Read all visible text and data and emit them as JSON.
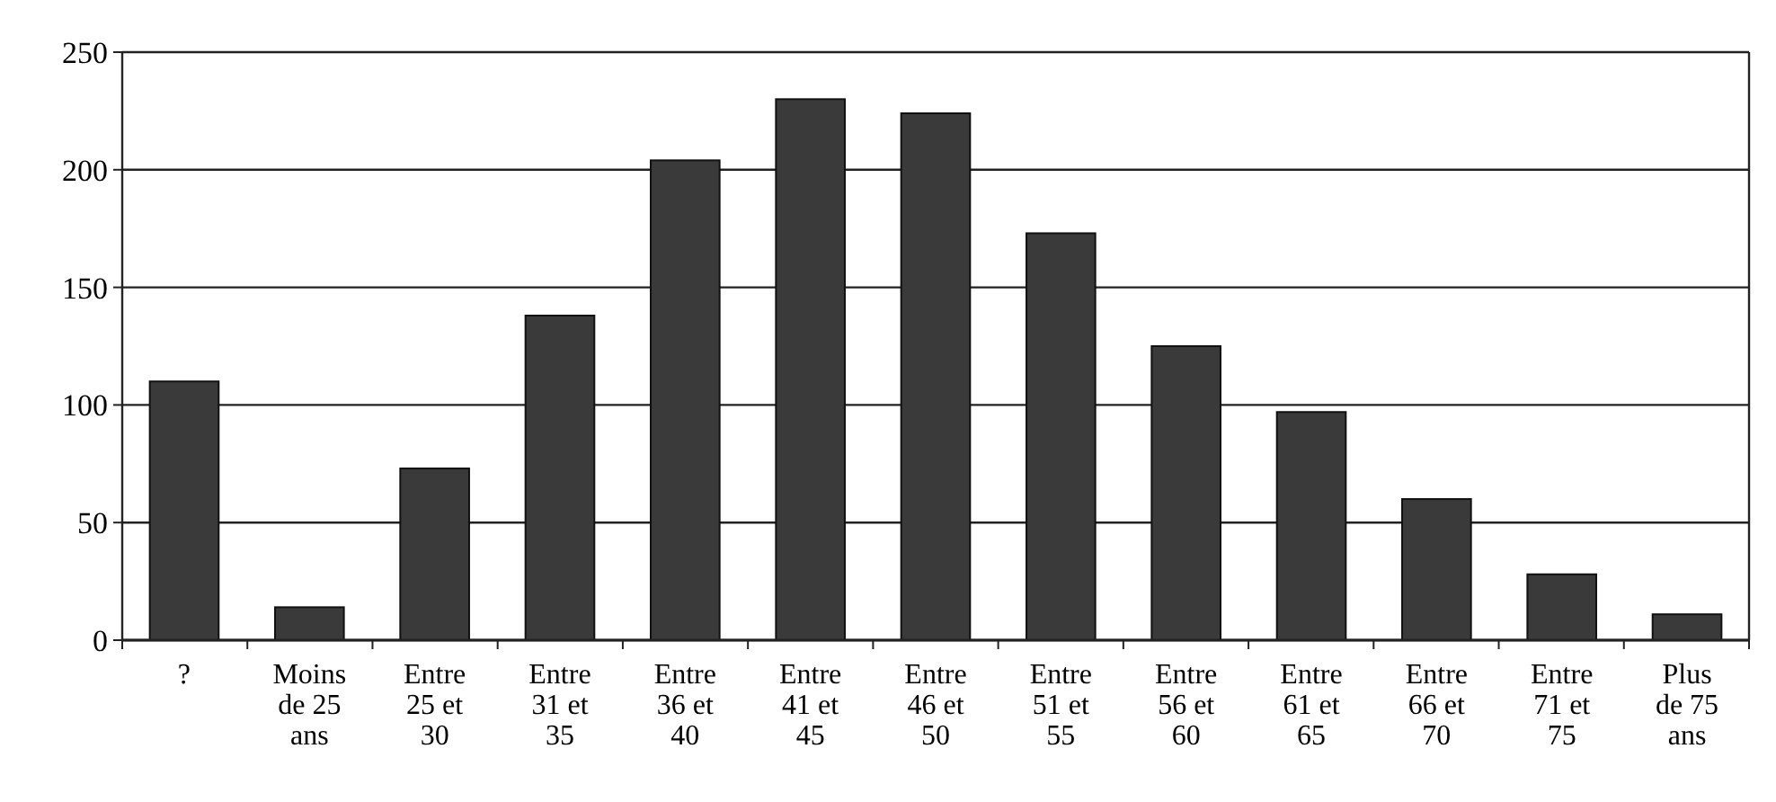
{
  "chart_data": {
    "type": "bar",
    "categories": [
      "?",
      "Moins de 25 ans",
      "Entre 25 et 30",
      "Entre 31 et 35",
      "Entre 36 et 40",
      "Entre 41 et 45",
      "Entre 46 et 50",
      "Entre 51 et 55",
      "Entre 56 et 60",
      "Entre 61 et 65",
      "Entre 66 et 70",
      "Entre 71 et 75",
      "Plus de 75 ans"
    ],
    "values": [
      110,
      14,
      73,
      138,
      204,
      230,
      224,
      173,
      125,
      97,
      60,
      28,
      11
    ],
    "color": "#3a3a3a",
    "ylim": [
      0,
      250
    ],
    "yticks": [
      0,
      50,
      100,
      150,
      200,
      250
    ],
    "grid": "y"
  }
}
